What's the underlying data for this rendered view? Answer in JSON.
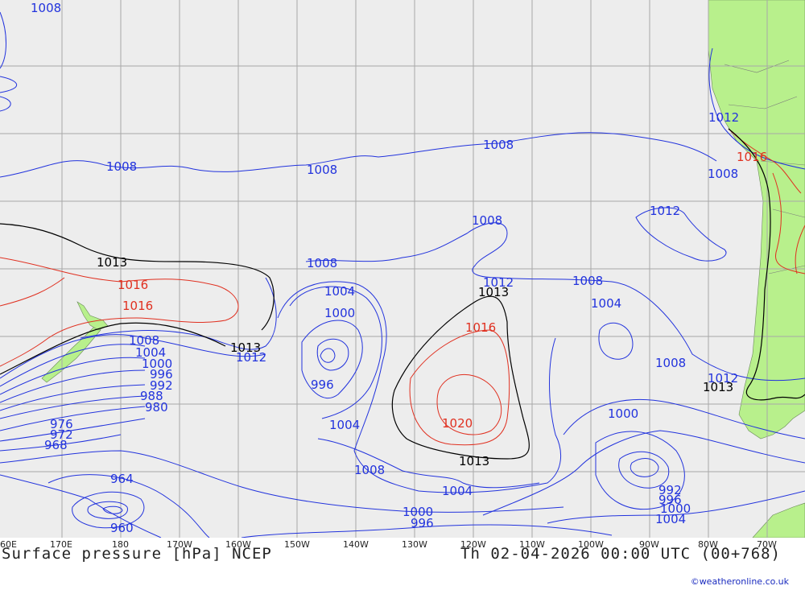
{
  "title": "Surface pressure [hPa] NCEP",
  "datetime": "Th 02-04-2026 00:00 UTC (00+768)",
  "credit": "©weatheronline.co.uk",
  "colors": {
    "low_isobar": "#2233dd",
    "high_isobar": "#e03020",
    "mean_isobar": "#000000",
    "land": "#b8f08c",
    "sea": "#ededed",
    "grid": "#a8a8a8"
  },
  "lon_labels": [
    "60E",
    "170E",
    "180",
    "170W",
    "160W",
    "150W",
    "140W",
    "130W",
    "120W",
    "110W",
    "100W",
    "90W",
    "80W",
    "70W"
  ],
  "isobar_labels": [
    {
      "text": "1008",
      "c": "blue"
    },
    {
      "text": "1008",
      "c": "blue"
    },
    {
      "text": "1008",
      "c": "blue"
    },
    {
      "text": "1008",
      "c": "blue"
    },
    {
      "text": "1012",
      "c": "blue"
    },
    {
      "text": "1016",
      "c": "red"
    },
    {
      "text": "1008",
      "c": "blue"
    },
    {
      "text": "1008",
      "c": "blue"
    },
    {
      "text": "1012",
      "c": "blue"
    },
    {
      "text": "1013",
      "c": "black"
    },
    {
      "text": "1016",
      "c": "red"
    },
    {
      "text": "1016",
      "c": "red"
    },
    {
      "text": "1008",
      "c": "blue"
    },
    {
      "text": "1004",
      "c": "blue"
    },
    {
      "text": "1000",
      "c": "blue"
    },
    {
      "text": "1012",
      "c": "blue"
    },
    {
      "text": "1013",
      "c": "black"
    },
    {
      "text": "996",
      "c": "blue"
    },
    {
      "text": "1012",
      "c": "blue"
    },
    {
      "text": "1013",
      "c": "black"
    },
    {
      "text": "1016",
      "c": "red"
    },
    {
      "text": "1020",
      "c": "red"
    },
    {
      "text": "1013",
      "c": "black"
    },
    {
      "text": "1008",
      "c": "blue"
    },
    {
      "text": "1004",
      "c": "blue"
    },
    {
      "text": "1008",
      "c": "blue"
    },
    {
      "text": "1013",
      "c": "black"
    },
    {
      "text": "1012",
      "c": "blue"
    },
    {
      "text": "1000",
      "c": "blue"
    },
    {
      "text": "1008",
      "c": "blue"
    },
    {
      "text": "1004",
      "c": "blue"
    },
    {
      "text": "1000",
      "c": "blue"
    },
    {
      "text": "996",
      "c": "blue"
    },
    {
      "text": "992",
      "c": "blue"
    },
    {
      "text": "996",
      "c": "blue"
    },
    {
      "text": "1000",
      "c": "blue"
    },
    {
      "text": "1004",
      "c": "blue"
    },
    {
      "text": "1008",
      "c": "blue"
    },
    {
      "text": "1004",
      "c": "blue"
    },
    {
      "text": "1000",
      "c": "blue"
    },
    {
      "text": "996",
      "c": "blue"
    },
    {
      "text": "992",
      "c": "blue"
    },
    {
      "text": "988",
      "c": "blue"
    },
    {
      "text": "980",
      "c": "blue"
    },
    {
      "text": "976",
      "c": "blue"
    },
    {
      "text": "972",
      "c": "blue"
    },
    {
      "text": "968",
      "c": "blue"
    },
    {
      "text": "964",
      "c": "blue"
    },
    {
      "text": "960",
      "c": "blue"
    },
    {
      "text": "1000",
      "c": "blue"
    },
    {
      "text": "996",
      "c": "blue"
    },
    {
      "text": "1004",
      "c": "blue"
    }
  ]
}
